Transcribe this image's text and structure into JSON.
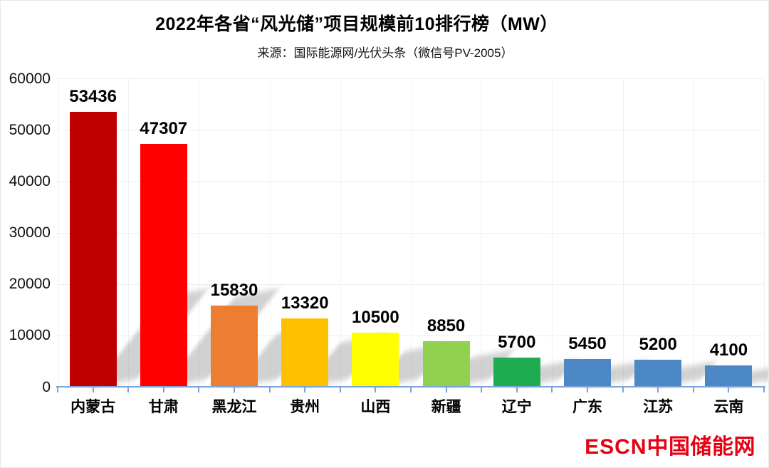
{
  "chart_data": {
    "type": "bar",
    "title": "2022年各省“风光储”项目规模前10排行榜（MW）",
    "subtitle": "来源：国际能源网/光伏头条（微信号PV-2005）",
    "categories": [
      "内蒙古",
      "甘肃",
      "黑龙江",
      "贵州",
      "山西",
      "新疆",
      "辽宁",
      "广东",
      "江苏",
      "云南"
    ],
    "values": [
      53436,
      47307,
      15830,
      13320,
      10500,
      8850,
      5700,
      5450,
      5200,
      4100
    ],
    "bar_colors": [
      "#C00000",
      "#FF0000",
      "#ED7D31",
      "#FFC000",
      "#FFFF00",
      "#92D050",
      "#1FAC50",
      "#4C88C5",
      "#4C88C5",
      "#4C88C5"
    ],
    "data_labels_shown": true,
    "ylim": [
      0,
      60000
    ],
    "yticks": [
      0,
      10000,
      20000,
      30000,
      40000,
      50000,
      60000
    ],
    "xlabel": "",
    "ylabel": "",
    "grid": true,
    "legend": "none",
    "axis_color": "#7AA4DA",
    "gridline_color": "#EFEFEF"
  },
  "footer": {
    "logo_en": "ESCN",
    "logo_zh": "中国储能网",
    "logo_color": "#E60012"
  }
}
